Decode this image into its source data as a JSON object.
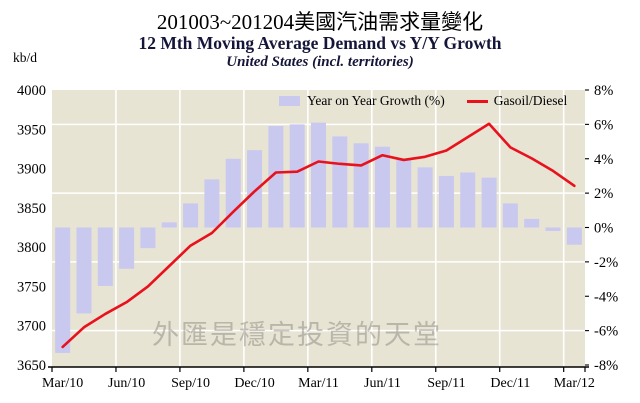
{
  "title": "201003~201204美國汽油需求量變化",
  "subtitle": "12 Mth Moving Average Demand vs Y/Y Growth",
  "subtitle2": "United States (incl. territories)",
  "unit_label": "kb/d",
  "watermark": "外匯是穩定投資的天堂",
  "legend": {
    "bars_label": "Year on Year Growth (%)",
    "line_label": "Gasoil/Diesel"
  },
  "colors": {
    "plot_bg": "#e7e4d4",
    "grid": "#ffffff",
    "bar": "#c9c8ef",
    "line": "#e8111c",
    "axis": "#000000"
  },
  "chart_data": {
    "type": "bar+line combo",
    "categories": [
      "Mar/10",
      "Apr/10",
      "May/10",
      "Jun/10",
      "Jul/10",
      "Aug/10",
      "Sep/10",
      "Oct/10",
      "Nov/10",
      "Dec/10",
      "Jan/11",
      "Feb/11",
      "Mar/11",
      "Apr/11",
      "May/11",
      "Jun/11",
      "Jul/11",
      "Aug/11",
      "Sep/11",
      "Oct/11",
      "Nov/11",
      "Dec/11",
      "Jan/12",
      "Feb/12",
      "Mar/12"
    ],
    "x_tick_labels": [
      "Mar/10",
      "Jun/10",
      "Sep/10",
      "Dec/10",
      "Mar/11",
      "Jun/11",
      "Sep/11",
      "Dec/11",
      "Mar/12"
    ],
    "series": [
      {
        "name": "Year on Year Growth (%)",
        "type": "bar",
        "axis": "right",
        "unit": "%",
        "values": [
          -7.3,
          -5.0,
          -3.4,
          -2.4,
          -1.2,
          0.3,
          1.4,
          2.8,
          4.0,
          4.5,
          5.9,
          6.0,
          6.1,
          5.3,
          4.9,
          4.7,
          4.0,
          3.5,
          3.0,
          3.2,
          2.9,
          1.4,
          0.5,
          -0.2,
          -1.0
        ]
      },
      {
        "name": "Gasoil/Diesel",
        "type": "line",
        "axis": "left",
        "unit": "kb/d",
        "values": [
          3673,
          3698,
          3715,
          3730,
          3750,
          3776,
          3802,
          3818,
          3845,
          3871,
          3895,
          3896,
          3909,
          3906,
          3904,
          3917,
          3911,
          3915,
          3923,
          3940,
          3957,
          3927,
          3913,
          3897,
          3878
        ]
      }
    ],
    "left_axis": {
      "label": "kb/d",
      "min": 3650,
      "max": 4000,
      "step": 50,
      "ticks": [
        "4000",
        "3950",
        "3900",
        "3850",
        "3800",
        "3750",
        "3700",
        "3650"
      ]
    },
    "right_axis": {
      "min": -8,
      "max": 8,
      "step": 2,
      "ticks": [
        "8%",
        "6%",
        "4%",
        "2%",
        "0%",
        "-2%",
        "-4%",
        "-6%",
        "-8%"
      ]
    },
    "grid": "horizontal white lines at ±6% and ±2%, vertical white lines at 3-month boundaries",
    "legend_position": "top inside plot"
  }
}
